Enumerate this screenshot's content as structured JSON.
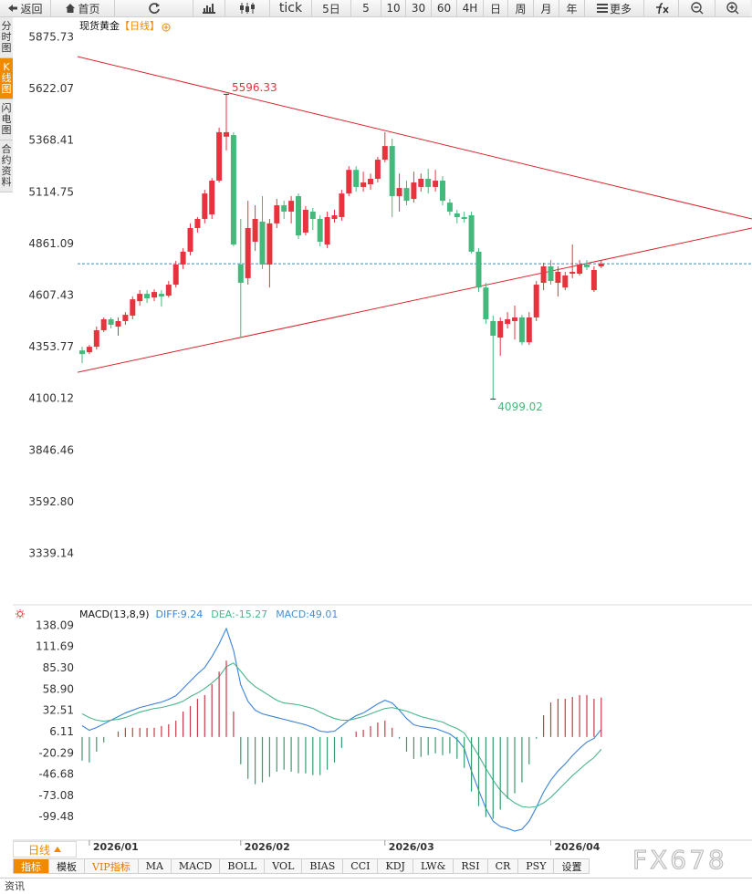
{
  "toolbar": {
    "back": "返回",
    "home": "首页",
    "periods": [
      "tick",
      "5日",
      "5",
      "10",
      "30",
      "60",
      "4H",
      "日",
      "周",
      "月",
      "年"
    ],
    "more": "更多"
  },
  "sidebar": [
    "分时图",
    "K线图",
    "闪电图",
    "合约资料"
  ],
  "bottom_bar": {
    "period": "日线",
    "tabs": [
      "指标",
      "模板",
      "VIP指标",
      "MA",
      "MACD",
      "BOLL",
      "VOL",
      "BIAS",
      "CCI",
      "KDJ",
      "LW&",
      "RSI",
      "CR",
      "PSY",
      "设置"
    ]
  },
  "watermark": "FX678",
  "footer": "资讯",
  "chart_data": [
    {
      "type": "candlestick",
      "title": "现货黄金",
      "subtitle": "【日线】",
      "categories": [
        null,
        "2026/01",
        null,
        null,
        null,
        null,
        null,
        null,
        null,
        null,
        null,
        null,
        null,
        null,
        null,
        null,
        null,
        null,
        null,
        null,
        null,
        null,
        "2026/02",
        null,
        null,
        null,
        null,
        null,
        null,
        null,
        null,
        null,
        null,
        null,
        null,
        null,
        null,
        null,
        null,
        null,
        null,
        null,
        "2026/03",
        null,
        null,
        null,
        null,
        null,
        null,
        null,
        null,
        null,
        null,
        null,
        null,
        null,
        null,
        null,
        null,
        null,
        null,
        null,
        null,
        null,
        null,
        "2026/04",
        null,
        null,
        null,
        null,
        null,
        null,
        null
      ],
      "open": [
        4338,
        4329,
        4356,
        4437,
        4491,
        4455,
        4482,
        4509,
        4580,
        4616,
        4598,
        4616,
        4607,
        4661,
        4760,
        4823,
        4939,
        4984,
        5006,
        5172,
        5388,
        5396,
        4760,
        4693,
        4872,
        4971,
        4760,
        4962,
        5051,
        5020,
        5096,
        4917,
        5020,
        4984,
        4858,
        4984,
        4993,
        5109,
        5225,
        5141,
        5154,
        5181,
        5275,
        5342,
        5096,
        5136,
        5082,
        5141,
        5181,
        5141,
        5172,
        5064,
        5011,
        4993,
        5002,
        4823,
        4647,
        4482,
        4401,
        4468,
        4482,
        4500,
        4378,
        4500,
        4670,
        4751,
        4670,
        4647,
        4715,
        4715,
        4760,
        4634,
        4751
      ],
      "close": [
        4320,
        4356,
        4437,
        4491,
        4464,
        4482,
        4513,
        4589,
        4616,
        4594,
        4625,
        4603,
        4661,
        4760,
        4823,
        4939,
        4984,
        5109,
        5172,
        5410,
        5410,
        4858,
        4670,
        4939,
        4984,
        4760,
        4962,
        5051,
        5020,
        5073,
        4903,
        5029,
        4984,
        4872,
        4993,
        5002,
        5109,
        5225,
        5141,
        5163,
        5181,
        5275,
        5342,
        5096,
        5136,
        5073,
        5163,
        5181,
        5141,
        5172,
        5073,
        5020,
        4993,
        4984,
        4823,
        4647,
        4491,
        4410,
        4482,
        4491,
        4500,
        4378,
        4500,
        4661,
        4751,
        4679,
        4724,
        4706,
        4724,
        4760,
        4747,
        4733,
        4764
      ],
      "high": [
        4356,
        4365,
        4455,
        4500,
        4500,
        4500,
        4526,
        4603,
        4634,
        4634,
        4638,
        4634,
        4679,
        4778,
        4840,
        4962,
        4993,
        5127,
        5185,
        5432,
        5596.33,
        5410,
        4984,
        5073,
        5051,
        5096,
        4984,
        5082,
        5073,
        5096,
        5109,
        5047,
        5038,
        5002,
        5020,
        5029,
        5127,
        5243,
        5243,
        5216,
        5207,
        5289,
        5410,
        5379,
        5207,
        5172,
        5216,
        5207,
        5230,
        5225,
        5194,
        5082,
        5029,
        5020,
        5020,
        4840,
        4670,
        4509,
        4500,
        4526,
        4558,
        4513,
        4526,
        4679,
        4769,
        4782,
        4751,
        4724,
        4858,
        4782,
        4782,
        4751,
        4778
      ],
      "low": [
        4275,
        4320,
        4342,
        4428,
        4446,
        4410,
        4464,
        4491,
        4558,
        4571,
        4580,
        4553,
        4598,
        4647,
        4738,
        4805,
        4917,
        4962,
        4984,
        5163,
        5320,
        4849,
        4401,
        4661,
        4827,
        4738,
        4647,
        4939,
        4984,
        4962,
        4885,
        4903,
        4930,
        4849,
        4840,
        4966,
        4975,
        5096,
        5118,
        5118,
        5127,
        5163,
        5262,
        4993,
        5020,
        5051,
        5064,
        5118,
        5109,
        5118,
        5051,
        5002,
        4962,
        4966,
        4814,
        4625,
        4468,
        4099.02,
        4311,
        4446,
        4392,
        4365,
        4365,
        4482,
        4634,
        4661,
        4603,
        4634,
        4693,
        4706,
        4733,
        4625,
        4742
      ],
      "up_color": "#e8333f",
      "down_color": "#45b97c",
      "last_line_color": "#3a8fb0",
      "grid": false,
      "ylim": [
        3101.6,
        5960.9
      ],
      "yticks": [
        5875.73,
        5622.07,
        5368.41,
        5114.75,
        4861.09,
        4607.43,
        4353.77,
        4100.12,
        3846.46,
        {
          "value": 3592.8,
          "label": "3592.80"
        },
        3339.14
      ],
      "trendlines": [
        {
          "color": "#d9262c",
          "x": [
            -0.63,
            92.9
          ],
          "y": [
            5781.6,
            4984
          ]
        },
        {
          "color": "#d9262c",
          "x": [
            -0.63,
            92.9
          ],
          "y": [
            4230.6,
            4939
          ]
        }
      ]
    },
    {
      "type": "macd",
      "title": "MACD(13,8,9)",
      "series": [
        {
          "name": "DIFF:9.24",
          "color": "#3b83d9",
          "values": [
            14.0,
            8.3,
            11.7,
            16.2,
            20.8,
            25.3,
            29.8,
            33.2,
            36.5,
            38.8,
            41.1,
            43.3,
            46.7,
            51.2,
            60.2,
            69.3,
            78.3,
            86.2,
            99.7,
            115.5,
            134.7,
            107.6,
            64.7,
            44.4,
            33.2,
            28.7,
            26.4,
            24.1,
            21.9,
            19.6,
            17.4,
            15.1,
            11.7,
            7.2,
            6.1,
            7.2,
            14.0,
            20.8,
            26.4,
            29.8,
            35.4,
            41.1,
            45.6,
            42.2,
            33.2,
            23.0,
            15.1,
            12.9,
            11.7,
            10.6,
            7.2,
            3.8,
            -2.9,
            -14.2,
            -42.4,
            -66.1,
            -88.7,
            -104.5,
            -111.2,
            -113.5,
            -116.9,
            -114.6,
            -104.5,
            -87.5,
            -68.4,
            -53.7,
            -42.4,
            -33.4,
            -23.2,
            -14.2,
            -6.3,
            -1.8,
            9.24
          ]
        },
        {
          "name": "DEA:-15.27",
          "color": "#4ab58a",
          "values": [
            28.7,
            24.1,
            20.8,
            19.6,
            20.8,
            21.9,
            24.1,
            27.5,
            30.9,
            33.2,
            35.4,
            36.5,
            38.8,
            41.1,
            44.4,
            50.1,
            54.6,
            60.2,
            67.0,
            74.9,
            87.3,
            91.8,
            81.7,
            70.4,
            62.5,
            56.9,
            51.2,
            45.6,
            42.2,
            41.1,
            39.9,
            37.7,
            35.4,
            30.9,
            26.4,
            23.0,
            20.8,
            20.8,
            23.0,
            25.3,
            28.7,
            32.1,
            35.4,
            36.5,
            34.3,
            32.1,
            28.7,
            25.3,
            23.0,
            20.8,
            18.5,
            14.0,
            10.6,
            5.0,
            -8.6,
            -23.2,
            -39.0,
            -53.7,
            -66.1,
            -75.1,
            -81.9,
            -86.4,
            -87.5,
            -86.4,
            -81.9,
            -75.1,
            -66.1,
            -57.1,
            -48.1,
            -40.2,
            -32.3,
            -25.5,
            -15.27
          ]
        },
        {
          "name": "MACD:49.01",
          "color": "#4a8fd0",
          "type": "histogram",
          "up_color": "#c83a4a",
          "down_color": "#3a9a6e",
          "values": [
            -29.4,
            -31.6,
            -18.2,
            -6.8,
            0,
            6.8,
            11.4,
            11.4,
            11.2,
            11.2,
            11.4,
            13.6,
            15.8,
            20.2,
            31.6,
            38.4,
            47.4,
            52.0,
            65.4,
            81.2,
            94.8,
            31.6,
            -34.0,
            -52.0,
            -58.6,
            -56.4,
            -49.6,
            -43.0,
            -40.6,
            -43.0,
            -45.0,
            -45.2,
            -47.4,
            -47.4,
            -40.6,
            -31.6,
            -13.6,
            0,
            6.8,
            9.0,
            13.4,
            18.0,
            20.4,
            11.4,
            -2.2,
            -18.2,
            -27.2,
            -24.8,
            -22.6,
            -20.4,
            -22.6,
            -20.4,
            -27.0,
            -38.4,
            -67.6,
            -85.8,
            -99.4,
            -101.6,
            -90.2,
            -76.8,
            -70.0,
            -56.4,
            -34.0,
            -2.2,
            27.0,
            42.8,
            47.4,
            47.4,
            49.8,
            52.0,
            52.0,
            47.4,
            49.01
          ]
        }
      ],
      "ylim": [
        -127,
        161.8
      ],
      "yticks": [
        138.09,
        111.69,
        {
          "value": 85.3,
          "label": "85.30"
        },
        {
          "value": 58.9,
          "label": "58.90"
        },
        32.51,
        6.11,
        -20.29,
        -46.68,
        -73.08,
        -99.48
      ]
    }
  ]
}
